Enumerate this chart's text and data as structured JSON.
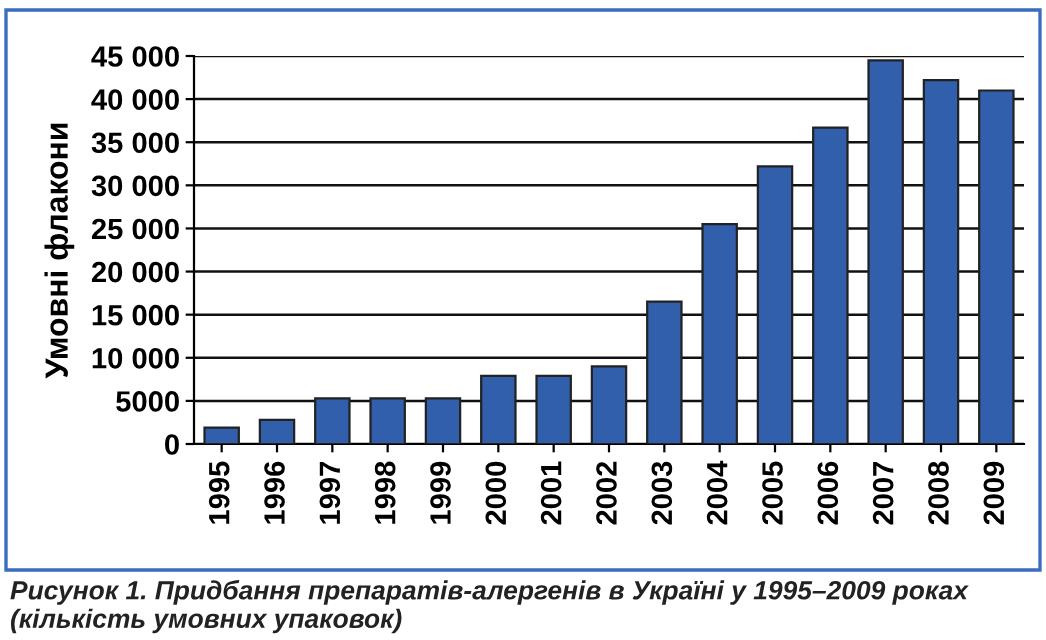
{
  "chart_data": {
    "type": "bar",
    "ylabel": "Умовні флакони",
    "categories": [
      "1995",
      "1996",
      "1997",
      "1998",
      "1999",
      "2000",
      "2001",
      "2002",
      "2003",
      "2004",
      "2005",
      "2006",
      "2007",
      "2008",
      "2009"
    ],
    "values": [
      1900,
      2800,
      5300,
      5300,
      5300,
      7900,
      7900,
      9000,
      16500,
      25500,
      32200,
      36700,
      44500,
      42200,
      41000
    ],
    "color": "#325fac",
    "ylim": [
      0,
      45000
    ],
    "yticks": [
      0,
      5000,
      {
        "value": 10000,
        "label": "10 000"
      },
      {
        "value": 15000,
        "label": "15 000"
      },
      {
        "value": 20000,
        "label": "20 000"
      },
      {
        "value": 25000,
        "label": "25 000"
      },
      {
        "value": 30000,
        "label": "30 000"
      },
      {
        "value": 35000,
        "label": "35 000"
      },
      {
        "value": 40000,
        "label": "40 000"
      },
      {
        "value": 45000,
        "label": "45 000"
      }
    ],
    "grid": "y",
    "annotations": [
      "Рисунок 1. Придбання препаратів-алергенів в Україні у 1995–2009 роках (кількість умовних упаковок)"
    ]
  }
}
